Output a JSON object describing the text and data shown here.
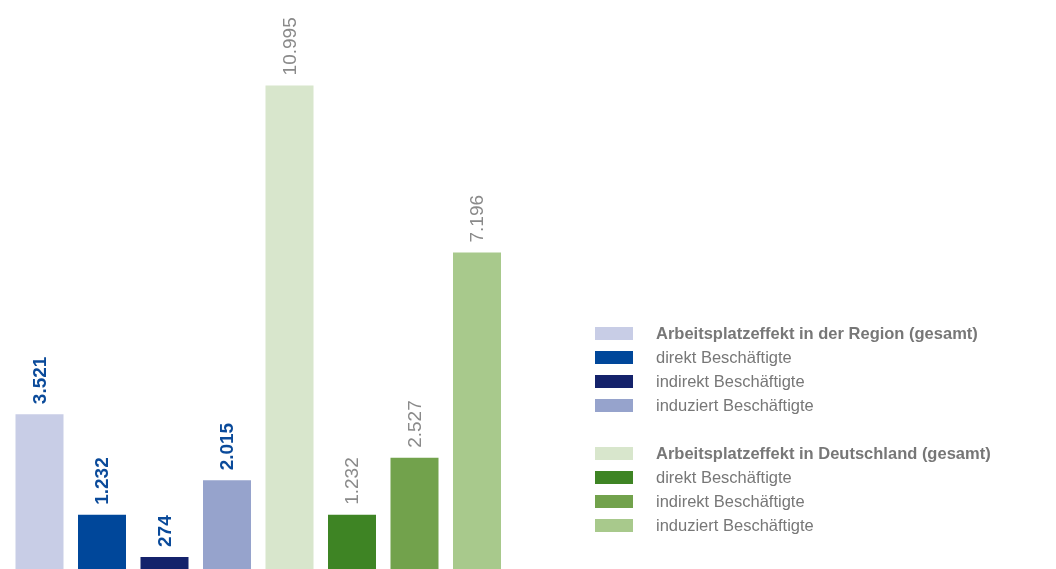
{
  "chart_data": {
    "type": "bar",
    "stacked": true,
    "categories": [
      null,
      null,
      null,
      null,
      null,
      null,
      null,
      null
    ],
    "series": [
      {
        "name": "Arbeitsplatzeffekt in der Region (gesamt)",
        "color": "#c8cde6",
        "values": [
          3521,
          null,
          null,
          null,
          null,
          null,
          null,
          null
        ],
        "value_labels": [
          "3.521",
          null,
          null,
          null,
          null,
          null,
          null,
          null
        ]
      },
      {
        "name": "direkt Beschäftigte",
        "color": "#00479a",
        "values": [
          null,
          1232,
          null,
          null,
          null,
          null,
          null,
          null
        ],
        "value_labels": [
          null,
          "1.232",
          null,
          null,
          null,
          null,
          null,
          null
        ]
      },
      {
        "name": "indirekt Beschäftigte",
        "color": "#14226b",
        "values": [
          null,
          null,
          274,
          null,
          null,
          null,
          null,
          null
        ],
        "value_labels": [
          null,
          null,
          "274",
          null,
          null,
          null,
          null,
          null
        ]
      },
      {
        "name": "induziert Beschäftigte",
        "color": "#96a3cc",
        "values": [
          null,
          null,
          null,
          2015,
          null,
          null,
          null,
          null
        ],
        "value_labels": [
          null,
          null,
          null,
          "2.015",
          null,
          null,
          null,
          null
        ]
      },
      {
        "name": "Arbeitsplatzeffekt in Deutschland (gesamt)",
        "color": "#d8e6cc",
        "values": [
          null,
          null,
          null,
          null,
          10995,
          null,
          null,
          null
        ],
        "value_labels": [
          null,
          null,
          null,
          null,
          "10.995",
          null,
          null,
          null
        ]
      },
      {
        "name": "direkt Beschäftigte",
        "color": "#3e8424",
        "values": [
          null,
          null,
          null,
          null,
          null,
          1232,
          null,
          null
        ],
        "value_labels": [
          null,
          null,
          null,
          null,
          null,
          "1.232",
          null,
          null
        ]
      },
      {
        "name": "indirekt Beschäftigte",
        "color": "#72a24c",
        "values": [
          null,
          null,
          null,
          null,
          null,
          null,
          2527,
          null
        ],
        "value_labels": [
          null,
          null,
          null,
          null,
          null,
          null,
          "2.527",
          null
        ]
      },
      {
        "name": "induziert Beschäftigte",
        "color": "#a8c98c",
        "values": [
          null,
          null,
          null,
          null,
          null,
          null,
          null,
          7196
        ],
        "value_labels": [
          null,
          null,
          null,
          null,
          null,
          null,
          null,
          "7.196"
        ]
      }
    ],
    "tick_labels": false,
    "legend": "right",
    "grid": false
  }
}
